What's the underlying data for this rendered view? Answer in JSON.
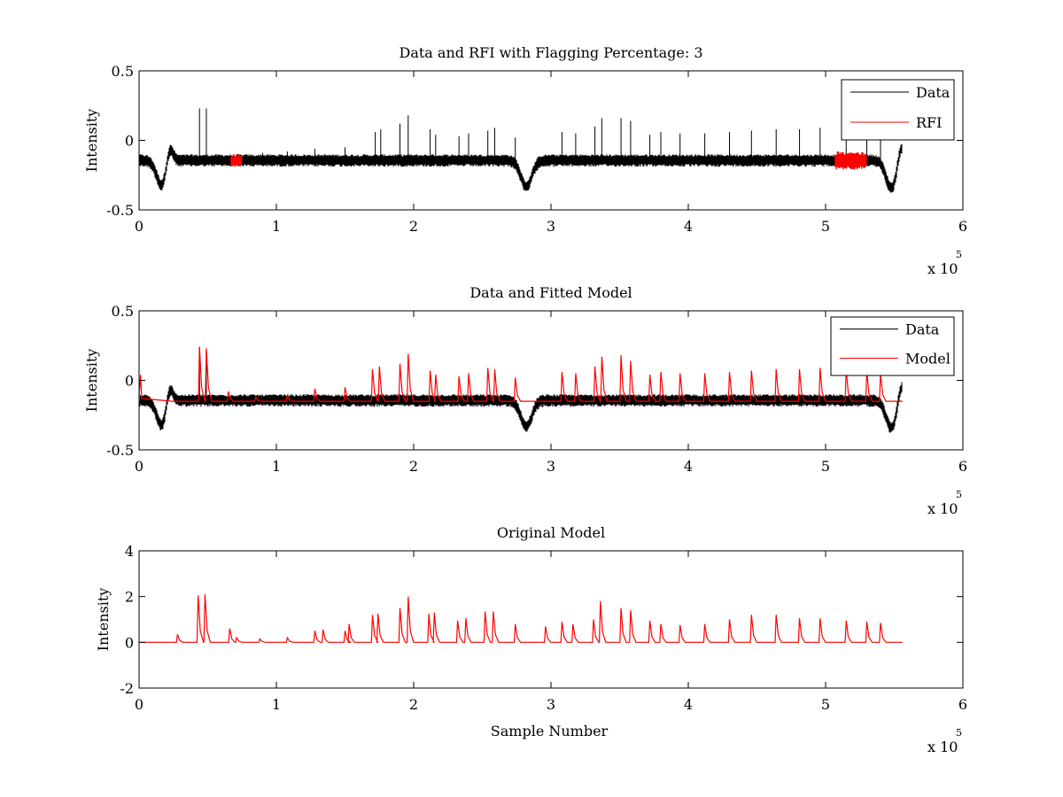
{
  "chart_data": [
    {
      "type": "line",
      "title": "Data and RFI with Flagging Percentage: 3",
      "xlabel": "",
      "ylabel": "Intensity",
      "xlim": [
        0,
        600000
      ],
      "ylim": [
        -0.5,
        0.5
      ],
      "xticks": [
        0,
        100000,
        200000,
        300000,
        400000,
        500000,
        600000
      ],
      "xtick_labels": [
        "0",
        "1",
        "2",
        "3",
        "4",
        "5",
        "6"
      ],
      "yticks": [
        -0.5,
        0,
        0.5
      ],
      "ytick_labels": [
        "-0.5",
        "0",
        "0.5"
      ],
      "x_multiplier": {
        "base": "x 10",
        "exponent": "5"
      },
      "legend": {
        "position": "top-right",
        "entries": [
          {
            "label": "Data",
            "color": "#000000"
          },
          {
            "label": "RFI",
            "color": "#ff0000"
          }
        ]
      },
      "series": [
        {
          "name": "Data",
          "color": "#000000",
          "baseline": -0.14,
          "noise_band": [
            -0.19,
            -0.1
          ],
          "x_range": [
            0,
            556000
          ],
          "dips": [
            {
              "x": 17000,
              "y": -0.33
            },
            {
              "x": 282000,
              "y": -0.33
            },
            {
              "x": 548000,
              "y": -0.34
            }
          ],
          "bumps": [
            {
              "x": 22000,
              "y": 0.02
            },
            {
              "x": 555000,
              "y": 0.0
            }
          ],
          "spikes": [
            {
              "x": 44000,
              "y": 0.23
            },
            {
              "x": 49000,
              "y": 0.23
            },
            {
              "x": 90000,
              "y": -0.09
            },
            {
              "x": 108000,
              "y": -0.08
            },
            {
              "x": 128000,
              "y": -0.06
            },
            {
              "x": 150000,
              "y": -0.05
            },
            {
              "x": 172000,
              "y": 0.06
            },
            {
              "x": 176000,
              "y": 0.08
            },
            {
              "x": 190000,
              "y": 0.12
            },
            {
              "x": 196000,
              "y": 0.18
            },
            {
              "x": 212000,
              "y": 0.08
            },
            {
              "x": 216000,
              "y": 0.04
            },
            {
              "x": 233000,
              "y": 0.03
            },
            {
              "x": 240000,
              "y": 0.05
            },
            {
              "x": 254000,
              "y": 0.07
            },
            {
              "x": 259000,
              "y": 0.09
            },
            {
              "x": 274000,
              "y": 0.02
            },
            {
              "x": 308000,
              "y": 0.06
            },
            {
              "x": 318000,
              "y": 0.05
            },
            {
              "x": 332000,
              "y": 0.1
            },
            {
              "x": 337000,
              "y": 0.16
            },
            {
              "x": 351000,
              "y": 0.16
            },
            {
              "x": 358000,
              "y": 0.14
            },
            {
              "x": 372000,
              "y": 0.04
            },
            {
              "x": 380000,
              "y": 0.06
            },
            {
              "x": 394000,
              "y": 0.05
            },
            {
              "x": 412000,
              "y": 0.05
            },
            {
              "x": 430000,
              "y": 0.06
            },
            {
              "x": 446000,
              "y": 0.07
            },
            {
              "x": 464000,
              "y": 0.08
            },
            {
              "x": 481000,
              "y": 0.08
            },
            {
              "x": 496000,
              "y": 0.09
            },
            {
              "x": 515000,
              "y": 0.08
            },
            {
              "x": 530000,
              "y": 0.07
            },
            {
              "x": 540000,
              "y": 0.05
            }
          ]
        },
        {
          "name": "RFI",
          "color": "#ff0000",
          "regions": [
            {
              "x_start": 67000,
              "x_end": 75000,
              "y_min": -0.19,
              "y_max": -0.1
            },
            {
              "x_start": 507000,
              "x_end": 530000,
              "y_min": -0.21,
              "y_max": -0.08
            }
          ]
        }
      ]
    },
    {
      "type": "line",
      "title": "Data and Fitted Model",
      "xlabel": "",
      "ylabel": "Intensity",
      "xlim": [
        0,
        600000
      ],
      "ylim": [
        -0.5,
        0.5
      ],
      "xticks": [
        0,
        100000,
        200000,
        300000,
        400000,
        500000,
        600000
      ],
      "xtick_labels": [
        "0",
        "1",
        "2",
        "3",
        "4",
        "5",
        "6"
      ],
      "yticks": [
        -0.5,
        0,
        0.5
      ],
      "ytick_labels": [
        "-0.5",
        "0",
        "0.5"
      ],
      "x_multiplier": {
        "base": "x 10",
        "exponent": "5"
      },
      "legend": {
        "position": "top-right",
        "entries": [
          {
            "label": "Data",
            "color": "#000000"
          },
          {
            "label": "Model",
            "color": "#ff0000"
          }
        ]
      },
      "series": [
        {
          "name": "Data",
          "color": "#000000",
          "baseline": -0.14,
          "noise_band": [
            -0.19,
            -0.1
          ],
          "x_range": [
            0,
            556000
          ],
          "dips": [
            {
              "x": 17000,
              "y": -0.33
            },
            {
              "x": 282000,
              "y": -0.33
            },
            {
              "x": 548000,
              "y": -0.34
            }
          ],
          "bumps": [
            {
              "x": 22000,
              "y": 0.02
            },
            {
              "x": 555000,
              "y": 0.0
            }
          ],
          "spikes": [
            {
              "x": 44000,
              "y": 0.24
            },
            {
              "x": 49000,
              "y": 0.23
            }
          ]
        },
        {
          "name": "Model",
          "color": "#ff0000",
          "baseline": -0.15,
          "start": {
            "x": 1000,
            "y": 0.04
          },
          "x_range": [
            24000,
            556000
          ],
          "peaks": [
            {
              "x": 44000,
              "y": 0.24
            },
            {
              "x": 49000,
              "y": 0.23
            },
            {
              "x": 65000,
              "y": -0.08
            },
            {
              "x": 85000,
              "y": -0.12
            },
            {
              "x": 108000,
              "y": -0.11
            },
            {
              "x": 128000,
              "y": -0.06
            },
            {
              "x": 150000,
              "y": -0.05
            },
            {
              "x": 170000,
              "y": 0.08
            },
            {
              "x": 175000,
              "y": 0.1
            },
            {
              "x": 190000,
              "y": 0.12
            },
            {
              "x": 196000,
              "y": 0.19
            },
            {
              "x": 212000,
              "y": 0.07
            },
            {
              "x": 216000,
              "y": 0.04
            },
            {
              "x": 233000,
              "y": 0.03
            },
            {
              "x": 240000,
              "y": 0.05
            },
            {
              "x": 254000,
              "y": 0.09
            },
            {
              "x": 259000,
              "y": 0.08
            },
            {
              "x": 274000,
              "y": 0.02
            },
            {
              "x": 308000,
              "y": 0.06
            },
            {
              "x": 318000,
              "y": 0.05
            },
            {
              "x": 332000,
              "y": 0.1
            },
            {
              "x": 337000,
              "y": 0.17
            },
            {
              "x": 351000,
              "y": 0.18
            },
            {
              "x": 358000,
              "y": 0.14
            },
            {
              "x": 372000,
              "y": 0.04
            },
            {
              "x": 380000,
              "y": 0.06
            },
            {
              "x": 394000,
              "y": 0.05
            },
            {
              "x": 412000,
              "y": 0.05
            },
            {
              "x": 430000,
              "y": 0.06
            },
            {
              "x": 446000,
              "y": 0.07
            },
            {
              "x": 464000,
              "y": 0.08
            },
            {
              "x": 481000,
              "y": 0.08
            },
            {
              "x": 496000,
              "y": 0.09
            },
            {
              "x": 515000,
              "y": 0.08
            },
            {
              "x": 530000,
              "y": 0.07
            },
            {
              "x": 540000,
              "y": 0.05
            }
          ]
        }
      ]
    },
    {
      "type": "line",
      "title": "Original Model",
      "xlabel": "Sample Number",
      "ylabel": "Intensity",
      "xlim": [
        0,
        600000
      ],
      "ylim": [
        -2,
        4
      ],
      "xticks": [
        0,
        100000,
        200000,
        300000,
        400000,
        500000,
        600000
      ],
      "xtick_labels": [
        "0",
        "1",
        "2",
        "3",
        "4",
        "5",
        "6"
      ],
      "yticks": [
        -2,
        0,
        2,
        4
      ],
      "ytick_labels": [
        "-2",
        "0",
        "2",
        "4"
      ],
      "x_multiplier": {
        "base": "x 10",
        "exponent": "5"
      },
      "legend": null,
      "series": [
        {
          "name": "",
          "color": "#ff0000",
          "baseline": 0,
          "x_range": [
            0,
            556000
          ],
          "peaks": [
            {
              "x": 28000,
              "y": 0.35
            },
            {
              "x": 43000,
              "y": 2.05
            },
            {
              "x": 48000,
              "y": 2.1
            },
            {
              "x": 66000,
              "y": 0.6
            },
            {
              "x": 71000,
              "y": 0.2
            },
            {
              "x": 88000,
              "y": 0.15
            },
            {
              "x": 108000,
              "y": 0.2
            },
            {
              "x": 128000,
              "y": 0.5
            },
            {
              "x": 134000,
              "y": 0.55
            },
            {
              "x": 150000,
              "y": 0.5
            },
            {
              "x": 153000,
              "y": 0.8
            },
            {
              "x": 170000,
              "y": 1.2
            },
            {
              "x": 174000,
              "y": 1.25
            },
            {
              "x": 190000,
              "y": 1.5
            },
            {
              "x": 196000,
              "y": 2.0
            },
            {
              "x": 211000,
              "y": 1.25
            },
            {
              "x": 215000,
              "y": 1.3
            },
            {
              "x": 232000,
              "y": 0.95
            },
            {
              "x": 238000,
              "y": 1.05
            },
            {
              "x": 252000,
              "y": 1.35
            },
            {
              "x": 258000,
              "y": 1.35
            },
            {
              "x": 274000,
              "y": 0.8
            },
            {
              "x": 296000,
              "y": 0.7
            },
            {
              "x": 308000,
              "y": 0.9
            },
            {
              "x": 316000,
              "y": 0.8
            },
            {
              "x": 331000,
              "y": 1.0
            },
            {
              "x": 336000,
              "y": 1.8
            },
            {
              "x": 351000,
              "y": 1.5
            },
            {
              "x": 358000,
              "y": 1.4
            },
            {
              "x": 372000,
              "y": 0.95
            },
            {
              "x": 380000,
              "y": 0.8
            },
            {
              "x": 394000,
              "y": 0.75
            },
            {
              "x": 412000,
              "y": 0.8
            },
            {
              "x": 430000,
              "y": 1.0
            },
            {
              "x": 446000,
              "y": 1.2
            },
            {
              "x": 464000,
              "y": 1.2
            },
            {
              "x": 481000,
              "y": 1.05
            },
            {
              "x": 496000,
              "y": 1.05
            },
            {
              "x": 515000,
              "y": 0.95
            },
            {
              "x": 530000,
              "y": 0.9
            },
            {
              "x": 540000,
              "y": 0.85
            }
          ]
        }
      ]
    }
  ]
}
